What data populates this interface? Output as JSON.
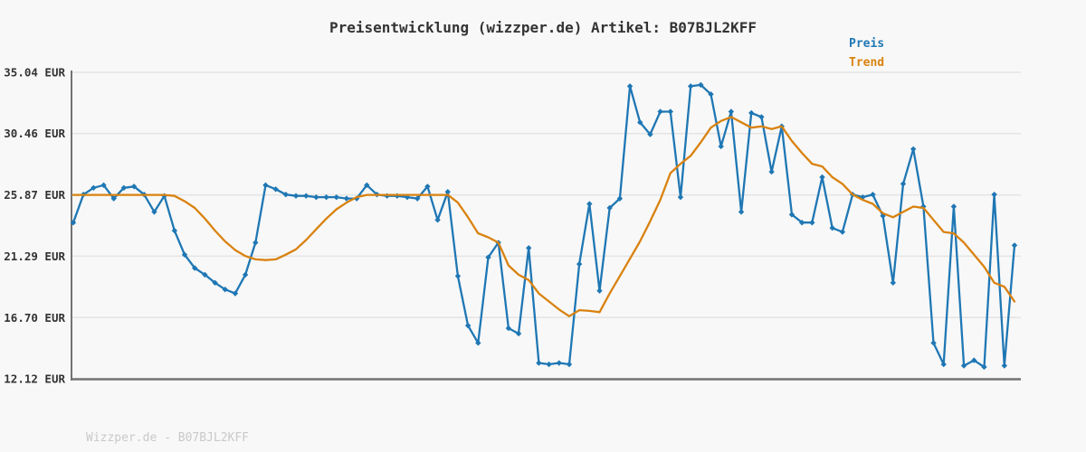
{
  "title": "Preisentwicklung (wizzper.de) Artikel: B07BJL2KFF",
  "watermark": "Wizzper.de - B07BJL2KFF",
  "colors": {
    "background": "#f8f8f8",
    "gridline": "#e4e4e4",
    "axis": "#737373",
    "preis": "#1f77b4",
    "trend": "#d9820f",
    "tick_text": "#333333",
    "watermark_text": "#c9c9c9"
  },
  "legend": [
    {
      "label": "Preis",
      "color": "#1f77b4"
    },
    {
      "label": "Trend",
      "color": "#d9820f"
    }
  ],
  "chart_data": {
    "type": "line",
    "title": "Preisentwicklung (wizzper.de) Artikel: B07BJL2KFF",
    "xlabel": "",
    "ylabel": "",
    "x_tick_labels": [],
    "y_ticks": [
      {
        "label": "35.04 EUR",
        "value": 35.04
      },
      {
        "label": "30.46 EUR",
        "value": 30.46
      },
      {
        "label": "25.87 EUR",
        "value": 25.87
      },
      {
        "label": "21.29 EUR",
        "value": 21.29
      },
      {
        "label": "16.70 EUR",
        "value": 16.7
      },
      {
        "label": "12.12 EUR",
        "value": 12.12
      }
    ],
    "ylim": [
      12.12,
      35.04
    ],
    "grid": true,
    "legend_position": "top-right",
    "series": [
      {
        "name": "Preis",
        "color": "#1f77b4",
        "markers": true,
        "values": [
          23.8,
          25.9,
          26.4,
          26.6,
          25.6,
          26.4,
          26.5,
          25.9,
          24.6,
          25.8,
          23.2,
          21.4,
          20.4,
          19.9,
          19.3,
          18.8,
          18.5,
          19.9,
          22.3,
          26.6,
          26.3,
          25.9,
          25.8,
          25.8,
          25.7,
          25.7,
          25.7,
          25.6,
          25.6,
          26.6,
          25.9,
          25.8,
          25.8,
          25.7,
          25.6,
          26.5,
          24.0,
          26.1,
          19.8,
          16.1,
          14.8,
          21.2,
          22.3,
          15.9,
          15.5,
          21.9,
          13.3,
          13.2,
          13.3,
          13.2,
          20.7,
          25.2,
          18.7,
          24.9,
          25.6,
          34.0,
          31.3,
          30.4,
          32.1,
          32.1,
          25.7,
          34.0,
          34.1,
          33.4,
          29.5,
          32.1,
          24.6,
          32.0,
          31.7,
          27.6,
          31.0,
          24.4,
          23.8,
          23.8,
          27.2,
          23.4,
          23.1,
          25.9,
          25.7,
          25.9,
          24.3,
          19.3,
          26.7,
          29.3,
          25.0,
          14.8,
          13.2,
          25.0,
          13.1,
          13.5,
          13.0,
          25.9,
          13.1,
          22.1
        ]
      },
      {
        "name": "Trend",
        "color": "#d9820f",
        "markers": false,
        "values": [
          25.87,
          25.87,
          25.87,
          25.87,
          25.87,
          25.87,
          25.87,
          25.87,
          25.87,
          25.87,
          25.8,
          25.4,
          24.9,
          24.1,
          23.2,
          22.4,
          21.75,
          21.3,
          21.05,
          21.0,
          21.05,
          21.4,
          21.8,
          22.5,
          23.3,
          24.1,
          24.8,
          25.3,
          25.7,
          25.87,
          25.87,
          25.87,
          25.87,
          25.87,
          25.87,
          25.87,
          25.87,
          25.87,
          25.3,
          24.2,
          23.0,
          22.7,
          22.3,
          20.6,
          19.9,
          19.5,
          18.5,
          17.9,
          17.3,
          16.8,
          17.25,
          17.2,
          17.1,
          18.5,
          19.8,
          21.1,
          22.4,
          23.9,
          25.5,
          27.5,
          28.2,
          28.8,
          29.8,
          30.9,
          31.4,
          31.7,
          31.3,
          30.9,
          31.0,
          30.8,
          31.0,
          29.9,
          29.0,
          28.2,
          28.0,
          27.2,
          26.7,
          25.9,
          25.5,
          25.2,
          24.5,
          24.2,
          24.6,
          25.0,
          24.9,
          24.0,
          23.1,
          23.0,
          22.3,
          21.4,
          20.5,
          19.3,
          19.0,
          17.9
        ]
      }
    ]
  }
}
